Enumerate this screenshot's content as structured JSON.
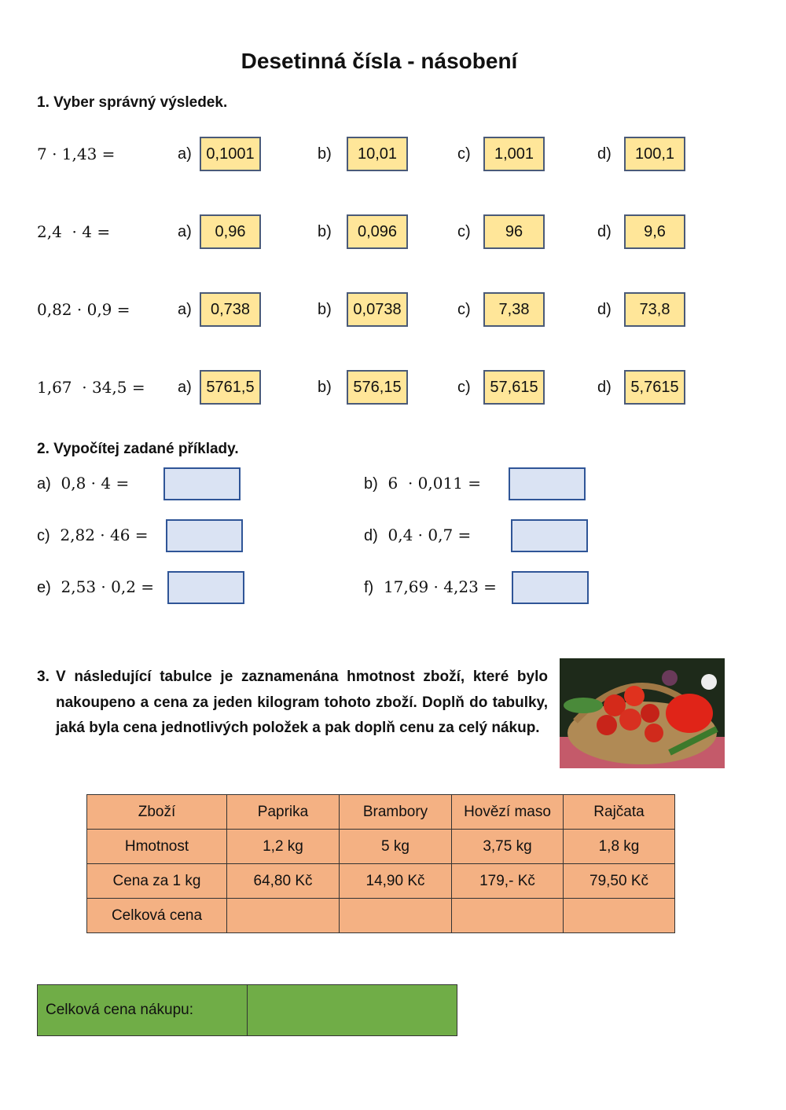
{
  "title": "Desetinná čísla - násobení",
  "section1": {
    "heading": "1. Vyber správný výsledek.",
    "rows": [
      {
        "expr": "7 · 1,43 =",
        "options": [
          {
            "label": "a)",
            "value": "0,1001"
          },
          {
            "label": "b)",
            "value": "10,01"
          },
          {
            "label": "c)",
            "value": "1,001"
          },
          {
            "label": "d)",
            "value": "100,1"
          }
        ]
      },
      {
        "expr": "2,4  · 4 =",
        "options": [
          {
            "label": "a)",
            "value": "0,96"
          },
          {
            "label": "b)",
            "value": "0,096"
          },
          {
            "label": "c)",
            "value": "96"
          },
          {
            "label": "d)",
            "value": "9,6"
          }
        ]
      },
      {
        "expr": "0,82 · 0,9 =",
        "options": [
          {
            "label": "a)",
            "value": "0,738"
          },
          {
            "label": "b)",
            "value": "0,0738"
          },
          {
            "label": "c)",
            "value": "7,38"
          },
          {
            "label": "d)",
            "value": "73,8"
          }
        ]
      },
      {
        "expr": "1,67  · 34,5 =",
        "options": [
          {
            "label": "a)",
            "value": "5761,5"
          },
          {
            "label": "b)",
            "value": "576,15"
          },
          {
            "label": "c)",
            "value": "57,615"
          },
          {
            "label": "d)",
            "value": "5,7615"
          }
        ]
      }
    ],
    "option_color": "#ffe699"
  },
  "section2": {
    "heading": "2. Vypočítej zadané příklady.",
    "items": [
      {
        "label": "a)",
        "expr": "0,8 · 4 ="
      },
      {
        "label": "b)",
        "expr": "6  · 0,011 ="
      },
      {
        "label": "c)",
        "expr": "2,82 · 46 ="
      },
      {
        "label": "d)",
        "expr": "0,4 · 0,7 ="
      },
      {
        "label": "e)",
        "expr": "2,53 · 0,2 ="
      },
      {
        "label": "f)",
        "expr": "17,69 · 4,23 ="
      }
    ],
    "input_color": "#dae3f3"
  },
  "section3": {
    "number": "3.",
    "text": "V následující tabulce je zaznamenána hmotnost zboží, které bylo nakoupeno a cena za jeden kilogram tohoto zboží. Doplň do tabulky, jaká byla cena jednotlivých položek a pak doplň cenu za celý nákup.",
    "image": "vegetable-basket-photo",
    "table": {
      "header": [
        "Zboží",
        "Paprika",
        "Brambory",
        "Hovězí maso",
        "Rajčata"
      ],
      "rows": [
        [
          "Hmotnost",
          "1,2 kg",
          "5 kg",
          "3,75 kg",
          "1,8 kg"
        ],
        [
          "Cena za 1 kg",
          "64,80 Kč",
          "14,90 Kč",
          "179,- Kč",
          "79,50 Kč"
        ],
        [
          "Celková cena",
          "",
          "",
          "",
          ""
        ]
      ],
      "color": "#f4b183"
    },
    "total_label": "Celková cena nákupu:",
    "total_color": "#70ad47"
  }
}
